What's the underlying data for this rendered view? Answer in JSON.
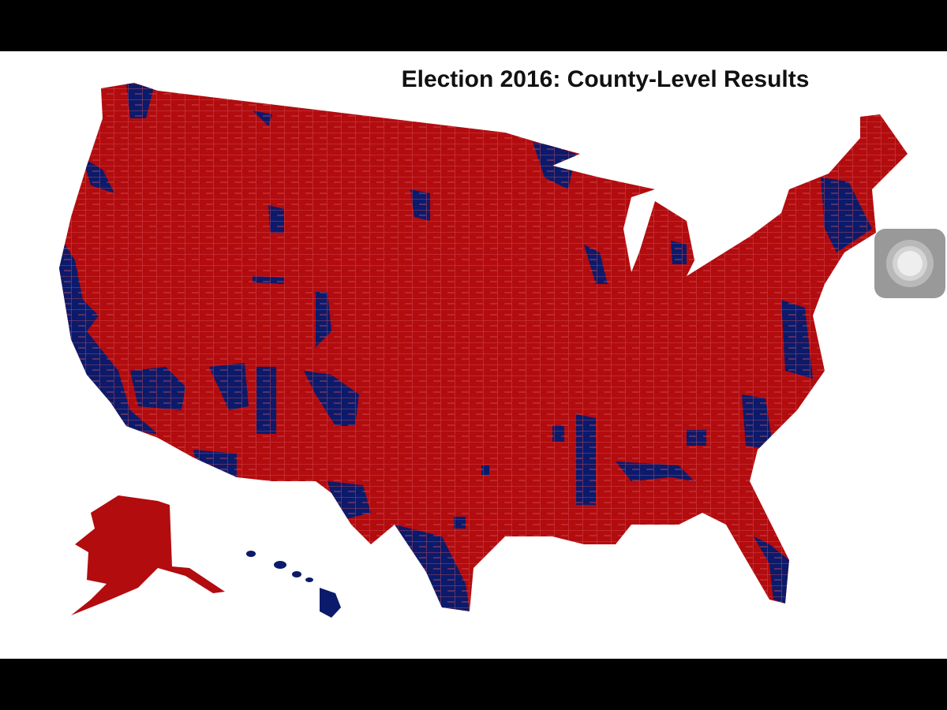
{
  "title": "Election 2016: County-Level Results"
}
